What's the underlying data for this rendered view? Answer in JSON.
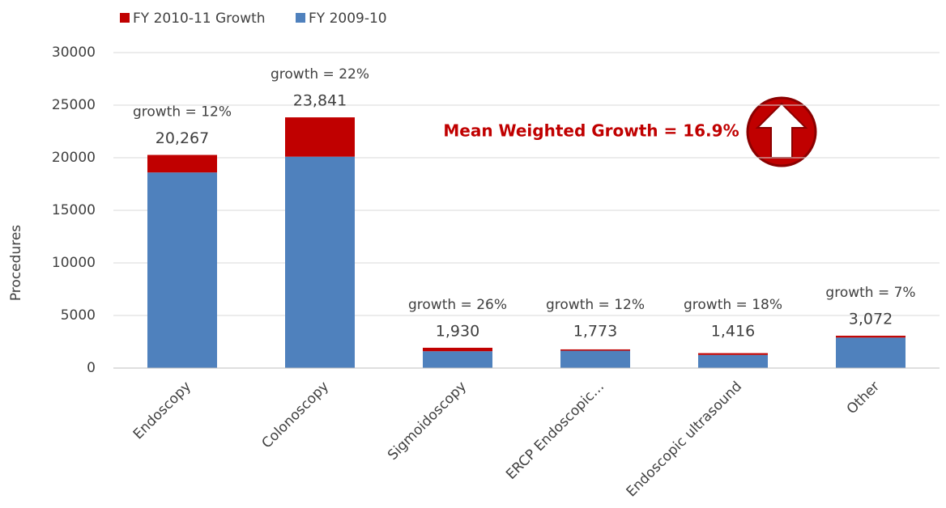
{
  "chart_data": {
    "type": "stacked_bar",
    "y_axis_label": "Procedures",
    "annotation": "Mean Weighted Growth = 16.9%",
    "categories": [
      "Endoscopy",
      "Colonoscopy",
      "Sigmoidoscopy",
      "ERCP Endoscopic…",
      "Endoscopic ultrasound",
      "Other"
    ],
    "series": [
      {
        "name": "FY 2009-10",
        "color": "#4f81bd",
        "values": [
          18600,
          20100,
          1600,
          1650,
          1250,
          2900
        ]
      },
      {
        "name": "FY 2010-11 Growth",
        "color": "#c00000",
        "values": [
          1667,
          3741,
          330,
          123,
          166,
          172
        ]
      }
    ],
    "totals": [
      20267,
      23841,
      1930,
      1773,
      1416,
      3072
    ],
    "total_labels": [
      "20,267",
      "23,841",
      "1,930",
      "1,773",
      "1,416",
      "3,072"
    ],
    "growth_labels": [
      "growth = 12%",
      "growth = 22%",
      "growth = 26%",
      "growth = 12%",
      "growth = 18%",
      "growth = 7%"
    ],
    "ylim": [
      0,
      30000
    ],
    "yticks": [
      0,
      5000,
      10000,
      15000,
      20000,
      25000,
      30000
    ],
    "grid": true,
    "legend_position": "top-left"
  }
}
